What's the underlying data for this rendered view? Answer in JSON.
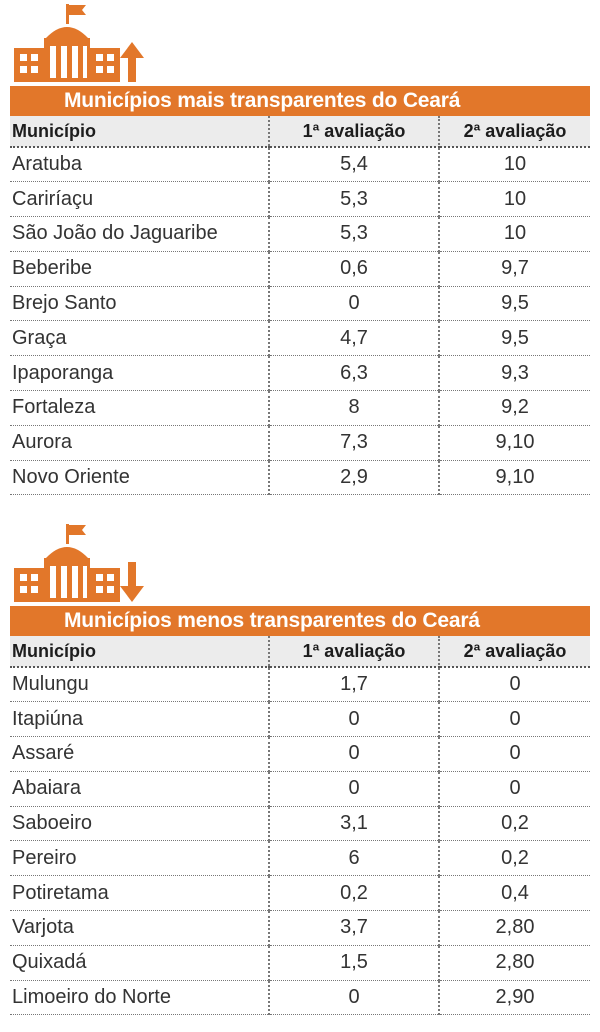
{
  "colors": {
    "accent": "#e2772a",
    "header_bg": "#ececec",
    "text": "#2b2b2b"
  },
  "top": {
    "icon": "building-up-arrow-icon",
    "title": "Municípios mais transparentes do Ceará",
    "columns": [
      "Município",
      "1ª avaliação",
      "2ª avaliação"
    ],
    "rows": [
      [
        "Aratuba",
        "5,4",
        "10"
      ],
      [
        "Cariríaçu",
        "5,3",
        "10"
      ],
      [
        "São João do Jaguaribe",
        "5,3",
        "10"
      ],
      [
        "Beberibe",
        "0,6",
        "9,7"
      ],
      [
        "Brejo Santo",
        "0",
        "9,5"
      ],
      [
        "Graça",
        "4,7",
        "9,5"
      ],
      [
        "Ipaporanga",
        "6,3",
        "9,3"
      ],
      [
        "Fortaleza",
        "8",
        "9,2"
      ],
      [
        "Aurora",
        "7,3",
        "9,10"
      ],
      [
        "Novo Oriente",
        "2,9",
        "9,10"
      ]
    ]
  },
  "bottom": {
    "icon": "building-down-arrow-icon",
    "title": "Municípios menos transparentes do Ceará",
    "columns": [
      "Município",
      "1ª avaliação",
      "2ª avaliação"
    ],
    "rows": [
      [
        "Mulungu",
        "1,7",
        "0"
      ],
      [
        "Itapiúna",
        "0",
        "0"
      ],
      [
        "Assaré",
        "0",
        "0"
      ],
      [
        "Abaiara",
        "0",
        "0"
      ],
      [
        "Saboeiro",
        "3,1",
        "0,2"
      ],
      [
        "Pereiro",
        "6",
        "0,2"
      ],
      [
        "Potiretama",
        "0,2",
        "0,4"
      ],
      [
        "Varjota",
        "3,7",
        "2,80"
      ],
      [
        "Quixadá",
        "1,5",
        "2,80"
      ],
      [
        "Limoeiro do Norte",
        "0",
        "2,90"
      ]
    ]
  }
}
